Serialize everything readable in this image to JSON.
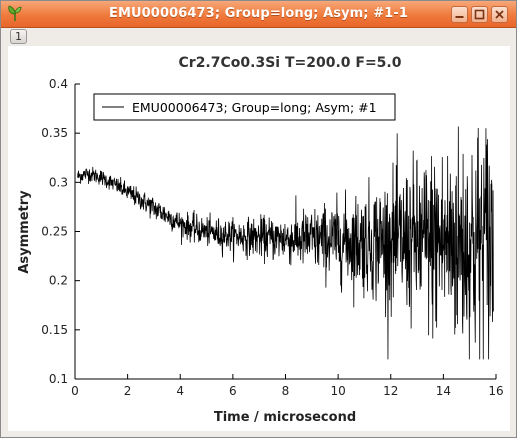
{
  "window": {
    "title": "EMU00006473; Group=long; Asym; #1-1",
    "tab_label": "1",
    "icon": "app-leaf-icon",
    "controls": [
      "minimize-icon",
      "maximize-icon",
      "close-icon"
    ]
  },
  "colors": {
    "titlebar": "#ef7a3b",
    "trace": "#000000"
  },
  "chart_data": {
    "type": "line",
    "title": "Cr2.7Co0.3Si T=200.0 F=5.0",
    "xlabel": "Time / microsecond",
    "ylabel": "Asymmetry",
    "xlim": [
      0,
      16
    ],
    "ylim": [
      0.1,
      0.4
    ],
    "xticks": [
      "0",
      "2",
      "4",
      "6",
      "8",
      "10",
      "12",
      "14",
      "16"
    ],
    "yticks": [
      "0.1",
      "0.15",
      "0.2",
      "0.25",
      "0.3",
      "0.35",
      "0.4"
    ],
    "grid": false,
    "legend_position": "top-left",
    "series": [
      {
        "name": "EMU00006473; Group=long; Asym; #1",
        "x": [
          0.1,
          0.5,
          1.0,
          1.5,
          2.0,
          2.5,
          3.0,
          3.5,
          4.0,
          4.5,
          5.0,
          5.5,
          6.0,
          6.5,
          7.0,
          7.5,
          8.0,
          8.5,
          9.0,
          9.5,
          10.0,
          10.5,
          11.0,
          11.5,
          12.0,
          12.5,
          13.0,
          13.5,
          14.0,
          14.5,
          15.0,
          15.5,
          15.9
        ],
        "y": [
          0.306,
          0.309,
          0.305,
          0.298,
          0.29,
          0.282,
          0.274,
          0.266,
          0.258,
          0.253,
          0.25,
          0.247,
          0.246,
          0.245,
          0.244,
          0.243,
          0.243,
          0.242,
          0.242,
          0.241,
          0.241,
          0.24,
          0.24,
          0.24,
          0.24,
          0.239,
          0.239,
          0.239,
          0.239,
          0.238,
          0.238,
          0.238,
          0.238
        ],
        "noise": [
          0.004,
          0.004,
          0.004,
          0.004,
          0.005,
          0.005,
          0.006,
          0.006,
          0.006,
          0.007,
          0.007,
          0.008,
          0.008,
          0.009,
          0.01,
          0.011,
          0.012,
          0.014,
          0.016,
          0.018,
          0.02,
          0.023,
          0.026,
          0.03,
          0.033,
          0.037,
          0.041,
          0.046,
          0.05,
          0.055,
          0.06,
          0.064,
          0.068
        ]
      }
    ]
  }
}
